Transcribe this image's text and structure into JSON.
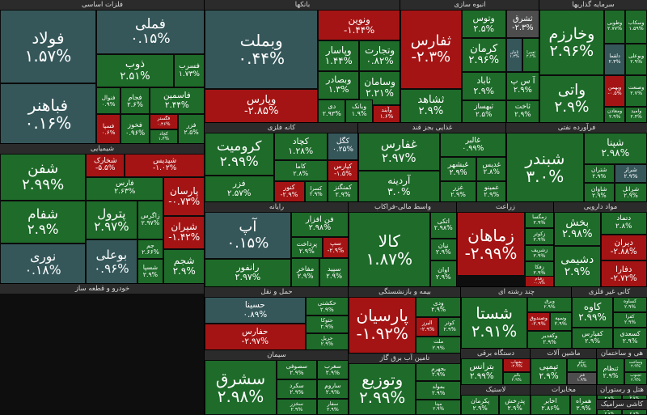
{
  "colors": {
    "up": "#1e6b2a",
    "up_strong": "#0f5d1d",
    "flat": "#35575a",
    "down": "#a51414",
    "down_light": "#7c1c1c",
    "neutral": "#4d4d4d",
    "header": "#2b2b2b"
  },
  "sectors": [
    {
      "id": "metals",
      "title": "فلزات اساسی",
      "tiles": [
        {
          "sym": "فولاد",
          "pct": "۱.۵۷%",
          "c": "flat"
        },
        {
          "sym": "فملی",
          "pct": "۰.۱۵%",
          "c": "flat"
        },
        {
          "sym": "فباهنر",
          "pct": "۰.۱۶%",
          "c": "flat"
        },
        {
          "sym": "ذوب",
          "pct": "۲.۵۱%",
          "c": "up"
        },
        {
          "sym": "فسرب",
          "pct": "۱.۷۳%",
          "c": "up"
        },
        {
          "sym": "فنوال",
          "pct": "۰.۹%",
          "c": "up"
        },
        {
          "sym": "فجام",
          "pct": "۲.۶%",
          "c": "up"
        },
        {
          "sym": "فاسمین",
          "pct": "۲.۴۴%",
          "c": "up"
        },
        {
          "sym": "فسپا",
          "pct": "۰.۶%",
          "c": "down"
        },
        {
          "sym": "فخوز",
          "pct": "۰.۹۶%",
          "c": "up"
        },
        {
          "sym": "فگستر",
          "pct": "۰.۴۶%",
          "c": "down"
        },
        {
          "sym": "فزر",
          "pct": "۲.۵%",
          "c": "up"
        },
        {
          "sym": "کچاد",
          "pct": "۱.۴%",
          "c": "up"
        }
      ]
    },
    {
      "id": "banks",
      "title": "بانکها",
      "tiles": [
        {
          "sym": "وبملت",
          "pct": "۰.۴۴%",
          "c": "flat"
        },
        {
          "sym": "وپارس",
          "pct": "-۲.۸۵%",
          "c": "down"
        },
        {
          "sym": "ونوین",
          "pct": "-۱.۴۴%",
          "c": "down"
        },
        {
          "sym": "وپاسار",
          "pct": "۱.۴۴%",
          "c": "up"
        },
        {
          "sym": "وبصادر",
          "pct": "۱.۳%",
          "c": "up"
        },
        {
          "sym": "وتجارت",
          "pct": "۰.۸۲%",
          "c": "up"
        },
        {
          "sym": "وسامان",
          "pct": "۲.۲۱%",
          "c": "up"
        },
        {
          "sym": "دی",
          "pct": "۲.۹۳%",
          "c": "up"
        },
        {
          "sym": "وبانک",
          "pct": "۱.۹%",
          "c": "up"
        },
        {
          "sym": "وکار",
          "pct": "۰.۴%",
          "c": "flat"
        },
        {
          "sym": "وخاور",
          "pct": "۲.۱%",
          "c": "up"
        },
        {
          "sym": "وآیند",
          "pct": "۱.۶%",
          "c": "down"
        }
      ]
    },
    {
      "id": "insurance",
      "title": "انبوه سازی",
      "tiles": [
        {
          "sym": "ثفارس",
          "pct": "-۲.۳%",
          "c": "down"
        },
        {
          "sym": "وتوس",
          "pct": "۲.۵%",
          "c": "up"
        },
        {
          "sym": "ثشاهد",
          "pct": "۲.۹%",
          "c": "up"
        },
        {
          "sym": "ثشرق",
          "pct": "-۲.۳%",
          "c": "neutral"
        },
        {
          "sym": "کرمان",
          "pct": "۲.۹۶%",
          "c": "up"
        },
        {
          "sym": "ثاباد",
          "pct": "۲.۹%",
          "c": "up"
        },
        {
          "sym": "ثبهساز",
          "pct": "۲.۵%",
          "c": "up"
        },
        {
          "sym": "آ س پ",
          "pct": "۲.۹%",
          "c": "up"
        },
        {
          "sym": "ثامان",
          "pct": "۱.۲%",
          "c": "flat"
        },
        {
          "sym": "ثعمرا",
          "pct": "۲.۴%",
          "c": "up"
        },
        {
          "sym": "ثنوسا",
          "pct": "۲.۷%",
          "c": "up"
        },
        {
          "sym": "ثاخت",
          "pct": "۲.۹%",
          "c": "up"
        }
      ]
    },
    {
      "id": "invest",
      "title": "سرمایه گذاریها",
      "tiles": [
        {
          "sym": "وخارزم",
          "pct": "۲.۹۶%",
          "c": "up"
        },
        {
          "sym": "وطوبی",
          "pct": "۲.۷۷%",
          "c": "up"
        },
        {
          "sym": "وسکاب",
          "pct": "۱.۵۹%",
          "c": "up"
        },
        {
          "sym": "واتی",
          "pct": "۲.۹%",
          "c": "up"
        },
        {
          "sym": "دلقما",
          "pct": "۲.۳%",
          "c": "flat"
        },
        {
          "sym": "وبوعلی",
          "pct": "۲.۹%",
          "c": "up"
        },
        {
          "sym": "ولپارس",
          "pct": "۲.۹%",
          "c": "up"
        },
        {
          "sym": "وصنعت",
          "pct": "۲.۷%",
          "c": "up"
        },
        {
          "sym": "وبهمن",
          "pct": "-۰.۵%",
          "c": "down"
        },
        {
          "sym": "ومعادن",
          "pct": "۲.۹%",
          "c": "up"
        },
        {
          "sym": "وامید",
          "pct": "۲.۴%",
          "c": "up"
        }
      ]
    },
    {
      "id": "chem",
      "title": "شیمیایی",
      "tiles": [
        {
          "sym": "شفن",
          "pct": "۲.۹۹%",
          "c": "up"
        },
        {
          "sym": "شپدیس",
          "pct": "-۱.۰۲%",
          "c": "down"
        },
        {
          "sym": "شخارک",
          "pct": "-۵.۵%",
          "c": "down"
        },
        {
          "sym": "شغدیر",
          "pct": "۲.۹%",
          "c": "up"
        },
        {
          "sym": "شفام",
          "pct": "۲.۹%",
          "c": "up"
        },
        {
          "sym": "پترول",
          "pct": "۲.۹۷%",
          "c": "up"
        },
        {
          "sym": "پارسان",
          "pct": "-۰.۷۳%",
          "c": "down"
        },
        {
          "sym": "فارس",
          "pct": "۲.۶۳%",
          "c": "up"
        },
        {
          "sym": "نوری",
          "pct": "۰.۱۸%",
          "c": "flat"
        },
        {
          "sym": "شیران",
          "pct": "-۱.۴۲%",
          "c": "down"
        },
        {
          "sym": "زاگرس",
          "pct": "۲.۹۷%",
          "c": "up"
        },
        {
          "sym": "جم",
          "pct": "۲.۶۶%",
          "c": "up"
        },
        {
          "sym": "بوعلی",
          "pct": "۰.۹۶%",
          "c": "flat"
        },
        {
          "sym": "شسپا",
          "pct": "۲.۹%",
          "c": "up"
        },
        {
          "sym": "شکربن",
          "pct": "۲.۷%",
          "c": "up"
        },
        {
          "sym": "شجم",
          "pct": "۲.۹%",
          "c": "up"
        }
      ]
    },
    {
      "id": "auto",
      "title": "خودرو و قطعه ساز",
      "tiles": [
        {
          "sym": "خکاوه",
          "pct": "۳.۰%",
          "c": "up"
        },
        {
          "sym": "خاور",
          "pct": "۲.۱۲%",
          "c": "up"
        },
        {
          "sym": "خزامیا",
          "pct": "۳.۰%",
          "c": "up"
        },
        {
          "sym": "خودرو",
          "pct": "۲.۹۷%",
          "c": "up"
        },
        {
          "sym": "خساپا",
          "pct": "۲.۹۷%",
          "c": "up"
        },
        {
          "sym": "خموتور",
          "pct": "۲.۹%",
          "c": "up"
        },
        {
          "sym": "ختراک",
          "pct": "۲.۵%",
          "c": "up"
        },
        {
          "sym": "خمهر",
          "pct": "۲.۹%",
          "c": "up"
        },
        {
          "sym": "خگستر",
          "pct": "۲.۹۹%",
          "c": "up"
        },
        {
          "sym": "خریخت",
          "pct": "۲.۹%",
          "c": "up"
        },
        {
          "sym": "ورنا",
          "pct": "۲.۹%",
          "c": "up"
        },
        {
          "sym": "خچرخش",
          "pct": "۲.۹%",
          "c": "up"
        }
      ]
    },
    {
      "id": "refine",
      "title": "کانه فلزی",
      "tiles": [
        {
          "sym": "کرومیت",
          "pct": "۲.۹۹%",
          "c": "up"
        },
        {
          "sym": "کگل",
          "pct": "۰.۲۵%",
          "c": "flat"
        },
        {
          "sym": "کچاد",
          "pct": "۱.۲۸%",
          "c": "up"
        },
        {
          "sym": "فزر",
          "pct": "۲.۵۷%",
          "c": "up"
        },
        {
          "sym": "کاما",
          "pct": "۲.۸%",
          "c": "up"
        },
        {
          "sym": "کنور",
          "pct": "-۲.۹%",
          "c": "down"
        },
        {
          "sym": "کسرا",
          "pct": "۲.۹%",
          "c": "up"
        },
        {
          "sym": "کپارس",
          "pct": "-۱.۵%",
          "c": "down"
        },
        {
          "sym": "کمنگنز",
          "pct": "۲.۹%",
          "c": "up"
        }
      ]
    },
    {
      "id": "food",
      "title": "غذایی بجز قند",
      "tiles": [
        {
          "sym": "غفارس",
          "pct": "۲.۹۷%",
          "c": "up"
        },
        {
          "sym": "غالبر",
          "pct": "۰.۹۹%",
          "c": "up"
        },
        {
          "sym": "غبشهر",
          "pct": "۲.۹%",
          "c": "up"
        },
        {
          "sym": "غدیس",
          "pct": "۲.۸%",
          "c": "up"
        },
        {
          "sym": "آردینه",
          "pct": "۳.۰%",
          "c": "up"
        },
        {
          "sym": "غپینو",
          "pct": "-۰.۹%",
          "c": "down"
        },
        {
          "sym": "غشصفا",
          "pct": "۲.۹%",
          "c": "up"
        },
        {
          "sym": "غزر",
          "pct": "۲.۹%",
          "c": "up"
        },
        {
          "sym": "غمینو",
          "pct": "۲.۹%",
          "c": "up"
        }
      ]
    },
    {
      "id": "oil",
      "title": "فرآورده نفتی",
      "tiles": [
        {
          "sym": "شبندر",
          "pct": "۳.۰%",
          "c": "up"
        },
        {
          "sym": "شپنا",
          "pct": "۲.۹۸%",
          "c": "up"
        },
        {
          "sym": "شتران",
          "pct": "۲.۹%",
          "c": "up"
        },
        {
          "sym": "شراز",
          "pct": "۲.۹%",
          "c": "flat"
        },
        {
          "sym": "شاوان",
          "pct": "۲.۹%",
          "c": "up"
        },
        {
          "sym": "شنفت",
          "pct": "۲.۹%",
          "c": "up"
        },
        {
          "sym": "شرانل",
          "pct": "۲.۹%",
          "c": "up"
        }
      ]
    },
    {
      "id": "telecom",
      "title": "رایانه",
      "tiles": [
        {
          "sym": "آپ",
          "pct": "۰.۱۵%",
          "c": "flat"
        },
        {
          "sym": "فن افزار",
          "pct": "۲.۹۸%",
          "c": "up"
        },
        {
          "sym": "سپ",
          "pct": "-۲.۹%",
          "c": "down"
        },
        {
          "sym": "رانفور",
          "pct": "۲.۹۷%",
          "c": "up"
        },
        {
          "sym": "پرداخت",
          "pct": "۲.۹%",
          "c": "up"
        },
        {
          "sym": "مفاخر",
          "pct": "۲.۹%",
          "c": "up"
        },
        {
          "sym": "سپید",
          "pct": "۲.۹%",
          "c": "up"
        }
      ]
    },
    {
      "id": "fin",
      "title": "واسط مالی-فراکاب",
      "tiles": [
        {
          "sym": "کالا",
          "pct": "۱.۸۷%",
          "c": "up"
        },
        {
          "sym": "اتکی",
          "pct": "۲.۹۸%",
          "c": "up"
        },
        {
          "sym": "نیان",
          "pct": "۲.۹%",
          "c": "up"
        },
        {
          "sym": "فرابورس",
          "pct": "۲.۹%",
          "c": "up"
        },
        {
          "sym": "ولساپا",
          "pct": "۲.۹%",
          "c": "up"
        },
        {
          "sym": "اوان",
          "pct": "۲.۹%",
          "c": "up"
        }
      ]
    },
    {
      "id": "agri",
      "title": "زراعت",
      "tiles": [
        {
          "sym": "زماهان",
          "pct": "-۲.۹۹%",
          "c": "down"
        },
        {
          "sym": "زمگسا",
          "pct": "۲.۹%",
          "c": "up"
        },
        {
          "sym": "زکوثر",
          "pct": "۲.۹%",
          "c": "up"
        },
        {
          "sym": "زشریف",
          "pct": "۲.۹%",
          "c": "up"
        },
        {
          "sym": "زفکا",
          "pct": "۲.۹%",
          "c": "up"
        },
        {
          "sym": "زقیام",
          "pct": "-۰.۹%",
          "c": "down"
        }
      ]
    },
    {
      "id": "drug",
      "title": "مواد دارویی",
      "tiles": [
        {
          "sym": "بخش",
          "pct": "۲.۹۸%",
          "c": "up"
        },
        {
          "sym": "دتماد",
          "pct": "۲.۸%",
          "c": "up"
        },
        {
          "sym": "دیران",
          "pct": "-۲.۸۸%",
          "c": "down"
        },
        {
          "sym": "دفارا",
          "pct": "-۲.۷۲%",
          "c": "down"
        },
        {
          "sym": "دامین",
          "pct": "۲.۲۷%",
          "c": "up"
        },
        {
          "sym": "دشیمی",
          "pct": "۲.۹%",
          "c": "up"
        }
      ]
    },
    {
      "id": "transport",
      "title": "حمل و نقل",
      "tiles": [
        {
          "sym": "حسینا",
          "pct": "۰.۸۹%",
          "c": "flat"
        },
        {
          "sym": "حکشتی",
          "pct": "۲.۹%",
          "c": "up"
        },
        {
          "sym": "حفارس",
          "pct": "-۲.۹۷%",
          "c": "down"
        },
        {
          "sym": "حتوکا",
          "pct": "۲.۹%",
          "c": "up"
        },
        {
          "sym": "حپارسا",
          "pct": "۲.۹%",
          "c": "up"
        },
        {
          "sym": "حریل",
          "pct": "۲.۹%",
          "c": "up"
        }
      ]
    },
    {
      "id": "cement",
      "title": "سیمان",
      "tiles": [
        {
          "sym": "سشرق",
          "pct": "۲.۹۸%",
          "c": "up"
        },
        {
          "sym": "سصوفی",
          "pct": "۲.۹%",
          "c": "up"
        },
        {
          "sym": "سغرب",
          "pct": "۲.۹%",
          "c": "up"
        },
        {
          "sym": "سکرد",
          "pct": "۲.۹%",
          "c": "up"
        },
        {
          "sym": "ساروم",
          "pct": "۲.۹%",
          "c": "up"
        },
        {
          "sym": "سخزر",
          "pct": "۲.۹%",
          "c": "up"
        },
        {
          "sym": "سفار",
          "pct": "۲.۹%",
          "c": "up"
        }
      ]
    },
    {
      "id": "insure2",
      "title": "بیمه و بازنشستگی",
      "tiles": [
        {
          "sym": "پارسیان",
          "pct": "-۱.۹۲%",
          "c": "down"
        },
        {
          "sym": "ودی",
          "pct": "۲.۹%",
          "c": "up"
        },
        {
          "sym": "البرز",
          "pct": "-۲.۹%",
          "c": "down"
        },
        {
          "sym": "کوثر",
          "pct": "۲.۹%",
          "c": "up"
        },
        {
          "sym": "ملت",
          "pct": "۲.۹%",
          "c": "up"
        }
      ]
    },
    {
      "id": "water",
      "title": "تامین آب برق گاز",
      "tiles": [
        {
          "sym": "وتوزیع",
          "pct": "۲.۹۹%",
          "c": "up"
        },
        {
          "sym": "بجهرم",
          "pct": "۲.۹%",
          "c": "up"
        },
        {
          "sym": "بمولد",
          "pct": "۲.۹%",
          "c": "up"
        },
        {
          "sym": "دماوند",
          "pct": "۲.۹%",
          "c": "up"
        },
        {
          "sym": "مپنا",
          "pct": "۲.۹%",
          "c": "up"
        }
      ]
    },
    {
      "id": "multi",
      "title": "چند رشته ای",
      "tiles": [
        {
          "sym": "شستا",
          "pct": "۲.۹۱%",
          "c": "up"
        },
        {
          "sym": "وبرق",
          "pct": "۲.۹%",
          "c": "up"
        },
        {
          "sym": "وصندوق",
          "pct": "-۲.۹%",
          "c": "down"
        },
        {
          "sym": "وسپه",
          "pct": "۲.۹%",
          "c": "up"
        },
        {
          "sym": "وکغدیر",
          "pct": "۲.۹%",
          "c": "up"
        }
      ]
    },
    {
      "id": "nonmetal",
      "title": "کانی غیر فلزی",
      "tiles": [
        {
          "sym": "کاوه",
          "pct": "۲.۹۹%",
          "c": "up"
        },
        {
          "sym": "کساوه",
          "pct": "۲.۹%",
          "c": "up"
        },
        {
          "sym": "کفرا",
          "pct": "۲.۹%",
          "c": "up"
        },
        {
          "sym": "کفپارس",
          "pct": "۲.۹%",
          "c": "up"
        },
        {
          "sym": "کلوند",
          "pct": "۲.۹%",
          "c": "up"
        },
        {
          "sym": "کسعدی",
          "pct": "۲.۹%",
          "c": "up"
        }
      ]
    },
    {
      "id": "devices",
      "title": "دستگاه برقی",
      "tiles": [
        {
          "sym": "بترانس",
          "pct": "۲.۹۹%",
          "c": "up"
        },
        {
          "sym": "بشهاب",
          "pct": "-۲.۹%",
          "c": "down"
        },
        {
          "sym": "بالبر",
          "pct": "۲.۹%",
          "c": "up"
        }
      ]
    },
    {
      "id": "machine",
      "title": "ماشین آلات",
      "tiles": [
        {
          "sym": "تپمپی",
          "pct": "۲.۹%",
          "c": "up"
        },
        {
          "sym": "تپکو",
          "pct": "۲.۹%",
          "c": "up"
        },
        {
          "sym": "فنر",
          "pct": "۱.۹%",
          "c": "neutral"
        }
      ]
    },
    {
      "id": "realestate",
      "title": "هی و ساختمان",
      "tiles": [
        {
          "sym": "ثنظام",
          "pct": "۲.۹%",
          "c": "up"
        },
        {
          "sym": "وساخت",
          "pct": "۲.۹%",
          "c": "up"
        },
        {
          "sym": "ثجنوب",
          "pct": "۲.۹%",
          "c": "up"
        }
      ]
    },
    {
      "id": "textile",
      "title": "لاستیک",
      "tiles": [
        {
          "sym": "پکرمان",
          "pct": "۲.۹%",
          "c": "up"
        },
        {
          "sym": "پدرخش",
          "pct": "۲.۹%",
          "c": "up"
        }
      ]
    },
    {
      "id": "trade",
      "title": "مخابرات",
      "tiles": [
        {
          "sym": "اخابر",
          "pct": "۲.۸۶%",
          "c": "up"
        },
        {
          "sym": "همراه",
          "pct": "۲.۹%",
          "c": "up"
        }
      ]
    },
    {
      "id": "tech",
      "title": "هتل و رستوران",
      "tiles": [
        {
          "sym": "سمگا",
          "pct": "۲.۹%",
          "c": "up"
        },
        {
          "sym": "گکوثر",
          "pct": "۲.۹%",
          "c": "up"
        }
      ]
    },
    {
      "id": "paper",
      "title": "کاشی سرامیک",
      "tiles": [
        {
          "sym": "کسرام",
          "pct": "۲.۹%",
          "c": "up"
        },
        {
          "sym": "کتابا",
          "pct": "۲.۹%",
          "c": "up"
        }
      ]
    }
  ]
}
